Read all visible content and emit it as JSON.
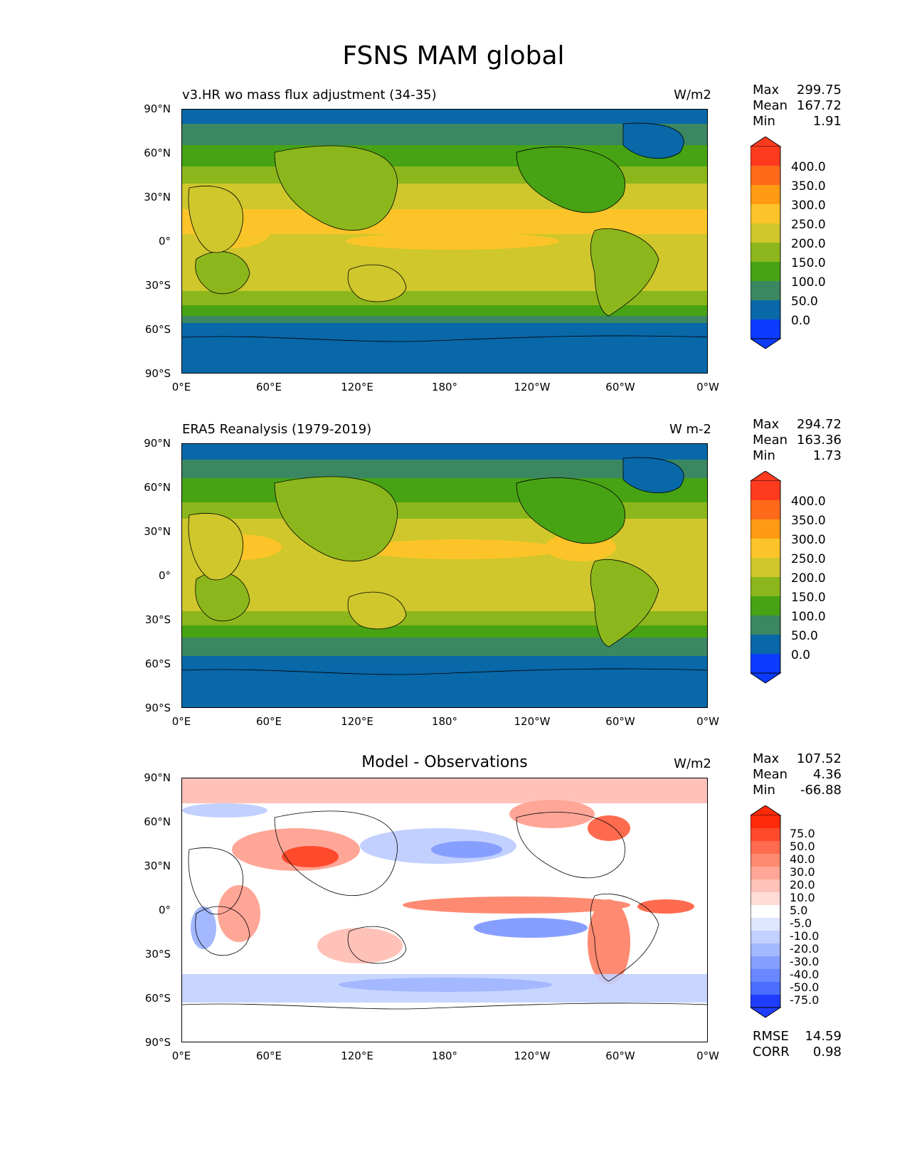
{
  "figure": {
    "title": "FSNS MAM global"
  },
  "lon_ticks": [
    "0°E",
    "60°E",
    "120°E",
    "180°",
    "120°W",
    "60°W",
    "0°W"
  ],
  "lat_ticks": [
    "90°N",
    "60°N",
    "30°N",
    "0°",
    "30°S",
    "60°S",
    "90°S"
  ],
  "panels": [
    {
      "title_left": "v3.HR wo mass flux adjustment (34-35)",
      "title_center": "",
      "units": "W/m2",
      "stats": [
        {
          "label": "Max",
          "value": "299.75"
        },
        {
          "label": "Mean",
          "value": "167.72"
        },
        {
          "label": "Min",
          "value": "1.91"
        }
      ],
      "colorbar": {
        "labels": [
          "400.0",
          "350.0",
          "300.0",
          "250.0",
          "200.0",
          "150.0",
          "100.0",
          "50.0",
          "0.0"
        ],
        "colors": [
          "#ff3b1f",
          "#ff6a1a",
          "#ff9a12",
          "#fcc428",
          "#cfc72c",
          "#8cb71c",
          "#47a313",
          "#3a8762",
          "#0868a8",
          "#0b3bff"
        ]
      }
    },
    {
      "title_left": "ERA5 Reanalysis (1979-2019)",
      "title_center": "",
      "units": "W m-2",
      "stats": [
        {
          "label": "Max",
          "value": "294.72"
        },
        {
          "label": "Mean",
          "value": "163.36"
        },
        {
          "label": "Min",
          "value": "1.73"
        }
      ],
      "colorbar": {
        "labels": [
          "400.0",
          "350.0",
          "300.0",
          "250.0",
          "200.0",
          "150.0",
          "100.0",
          "50.0",
          "0.0"
        ],
        "colors": [
          "#ff3b1f",
          "#ff6a1a",
          "#ff9a12",
          "#fcc428",
          "#cfc72c",
          "#8cb71c",
          "#47a313",
          "#3a8762",
          "#0868a8",
          "#0b3bff"
        ]
      }
    },
    {
      "title_left": "",
      "title_center": "Model - Observations",
      "units": "W/m2",
      "stats": [
        {
          "label": "Max",
          "value": "107.52"
        },
        {
          "label": "Mean",
          "value": "4.36"
        },
        {
          "label": "Min",
          "value": "-66.88"
        }
      ],
      "extra_stats": [
        {
          "label": "RMSE",
          "value": "14.59"
        },
        {
          "label": "CORR",
          "value": "0.98"
        }
      ],
      "colorbar": {
        "labels": [
          "75.0",
          "50.0",
          "40.0",
          "30.0",
          "20.0",
          "10.0",
          "5.0",
          "-5.0",
          "-10.0",
          "-20.0",
          "-30.0",
          "-40.0",
          "-50.0",
          "-75.0"
        ],
        "colors": [
          "#ff2a0a",
          "#ff4a2c",
          "#ff6b4e",
          "#ff8a72",
          "#ffa697",
          "#ffc2b8",
          "#ffdcd6",
          "#ffffff",
          "#dfe6ff",
          "#c2d0ff",
          "#a3b8ff",
          "#869fff",
          "#6a87ff",
          "#4b6eff",
          "#1f3dff"
        ]
      }
    }
  ]
}
